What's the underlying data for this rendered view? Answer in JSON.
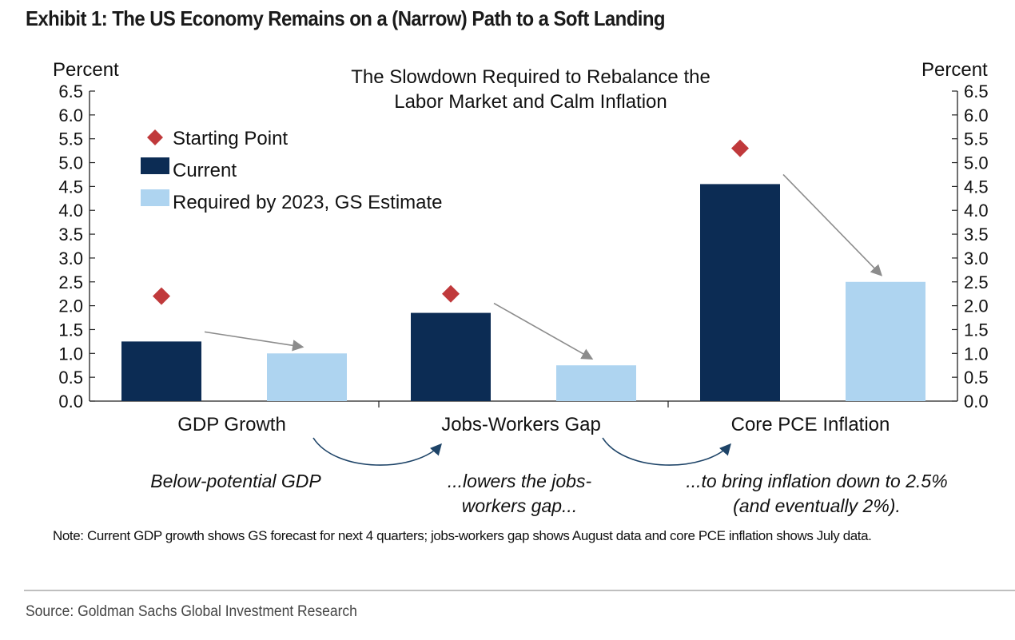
{
  "exhibit_title": "Exhibit 1: The US Economy Remains on a (Narrow) Path to a Soft Landing",
  "chart_data": {
    "type": "bar",
    "title": "The Slowdown Required to Rebalance the Labor Market and Calm Inflation",
    "ylabel_left": "Percent",
    "ylabel_right": "Percent",
    "ylim": [
      0,
      6.5
    ],
    "ytick_step": 0.5,
    "yticks": [
      "0.0",
      "0.5",
      "1.0",
      "1.5",
      "2.0",
      "2.5",
      "3.0",
      "3.5",
      "4.0",
      "4.5",
      "5.0",
      "5.5",
      "6.0",
      "6.5"
    ],
    "categories": [
      "GDP Growth",
      "Jobs-Workers Gap",
      "Core PCE Inflation"
    ],
    "series": [
      {
        "name": "Starting Point",
        "marker": "diamond",
        "color": "#c0393b",
        "values": [
          2.2,
          2.25,
          5.3
        ]
      },
      {
        "name": "Current",
        "color": "#0c2c54",
        "values": [
          1.25,
          1.85,
          4.55
        ]
      },
      {
        "name": "Required by 2023, GS Estimate",
        "color": "#aed4f0",
        "values": [
          1.0,
          0.75,
          2.5
        ]
      }
    ],
    "grid": false,
    "legend_position": "top-left"
  },
  "captions": [
    "Below-potential GDP",
    "...lowers the jobs-workers gap...",
    "...to bring inflation down to 2.5% (and eventually 2%)."
  ],
  "note": "Note: Current GDP growth shows GS forecast for next 4 quarters; jobs-workers gap shows August data and core PCE inflation shows July data.",
  "source": "Source: Goldman Sachs Global Investment Research"
}
